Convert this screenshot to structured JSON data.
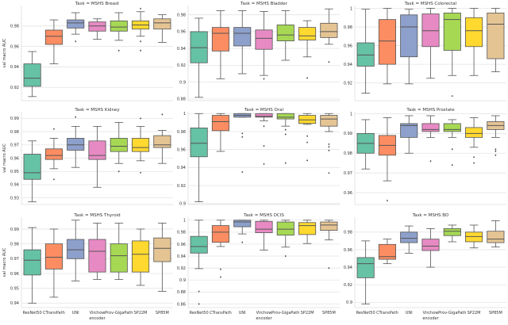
{
  "chart_data": {
    "type": "box",
    "layout": "3x3 facet grid",
    "grid": true,
    "categories": [
      "ResNet50",
      "CTransPath",
      "UNI",
      "Virchow",
      "Prov-GigaPath",
      "SP22M",
      "SP85M"
    ],
    "xlabel": "encoder",
    "ylabel": "val macro AUC",
    "colors": [
      "#66c2a5",
      "#fc8d62",
      "#8da0cb",
      "#e78ac3",
      "#a6d854",
      "#ffd92f",
      "#e5c494"
    ],
    "panels": [
      {
        "title": "Task = MSHS Breast",
        "ylim": [
          0.907,
          1.0
        ],
        "yticks": [
          0.92,
          0.94,
          0.96,
          0.98
        ],
        "boxes": [
          [
            0.911,
            0.921,
            0.929,
            0.943,
            0.955,
            []
          ],
          [
            0.943,
            0.962,
            0.97,
            0.976,
            0.986,
            []
          ],
          [
            0.972,
            0.978,
            0.983,
            0.986,
            0.993,
            [
              0.965
            ]
          ],
          [
            0.967,
            0.975,
            0.98,
            0.984,
            0.987,
            []
          ],
          [
            0.966,
            0.975,
            0.979,
            0.985,
            0.993,
            [
              0.956
            ]
          ],
          [
            0.97,
            0.977,
            0.981,
            0.985,
            0.994,
            [
              0.997,
              0.965,
              0.956
            ]
          ],
          [
            0.964,
            0.977,
            0.983,
            0.987,
            0.991,
            []
          ]
        ]
      },
      {
        "title": "Task = MSHS Bladder",
        "ylim": [
          0.878,
          0.991
        ],
        "yticks": [
          0.88,
          0.9,
          0.92,
          0.94,
          0.96,
          0.98
        ],
        "boxes": [
          [
            0.882,
            0.923,
            0.941,
            0.96,
            0.976,
            []
          ],
          [
            0.904,
            0.937,
            0.958,
            0.965,
            0.985,
            []
          ],
          [
            0.91,
            0.943,
            0.958,
            0.965,
            0.985,
            []
          ],
          [
            0.908,
            0.939,
            0.952,
            0.962,
            0.984,
            [
              0.904
            ]
          ],
          [
            0.926,
            0.949,
            0.956,
            0.968,
            0.985,
            []
          ],
          [
            0.93,
            0.95,
            0.955,
            0.965,
            0.973,
            [
              0.905
            ]
          ],
          [
            0.945,
            0.953,
            0.96,
            0.97,
            0.987,
            [
              0.924
            ]
          ]
        ]
      },
      {
        "title": "Task = MSHS Colorectal",
        "ylim": [
          0.901,
          1.003
        ],
        "yticks": [
          0.92,
          0.94,
          0.96,
          0.98,
          1.0
        ],
        "boxes": [
          [
            0.909,
            0.938,
            0.95,
            0.963,
            0.999,
            []
          ],
          [
            0.919,
            0.94,
            0.965,
            0.988,
            1.0,
            []
          ],
          [
            0.919,
            0.948,
            0.98,
            0.993,
            0.999,
            []
          ],
          [
            0.925,
            0.959,
            0.976,
            0.994,
            1.0,
            []
          ],
          [
            0.928,
            0.955,
            0.988,
            0.995,
            1.0,
            [
              0.906
            ]
          ],
          [
            0.928,
            0.959,
            0.976,
            0.99,
            1.0,
            []
          ],
          [
            0.932,
            0.946,
            0.983,
            0.995,
            1.0,
            []
          ]
        ]
      },
      {
        "title": "Task = MSHS Kidney",
        "ylim": [
          0.925,
          0.995
        ],
        "yticks": [
          0.93,
          0.94,
          0.95,
          0.96,
          0.97,
          0.98,
          0.99
        ],
        "boxes": [
          [
            0.927,
            0.944,
            0.949,
            0.963,
            0.973,
            []
          ],
          [
            0.952,
            0.959,
            0.962,
            0.967,
            0.975,
            [
              0.982,
              0.944
            ]
          ],
          [
            0.953,
            0.966,
            0.97,
            0.975,
            0.984,
            [
              0.991
            ]
          ],
          [
            0.938,
            0.959,
            0.962,
            0.973,
            0.984,
            []
          ],
          [
            0.956,
            0.965,
            0.969,
            0.975,
            0.987,
            [
              0.95
            ]
          ],
          [
            0.958,
            0.965,
            0.968,
            0.975,
            0.984,
            [
              0.99,
              0.949
            ]
          ],
          [
            0.956,
            0.968,
            0.97,
            0.977,
            0.981,
            [
              0.993
            ]
          ]
        ]
      },
      {
        "title": "Task = MSHS Oral",
        "ylim": [
          0.899,
          1.002
        ],
        "yticks": [
          0.9,
          0.92,
          0.94,
          0.96,
          0.98,
          1.0
        ],
        "boxes": [
          [
            0.902,
            0.952,
            0.967,
            0.984,
            1.0,
            []
          ],
          [
            0.958,
            0.981,
            0.991,
            0.998,
            1.0,
            []
          ],
          [
            0.996,
            0.996,
            0.998,
            1.0,
            1.0,
            [
              0.978,
              0.974,
              0.935
            ]
          ],
          [
            0.992,
            0.996,
            0.997,
            1.0,
            1.0,
            [
              0.986,
              0.964,
              0.944
            ]
          ],
          [
            0.986,
            0.994,
            0.996,
            1.0,
            1.0,
            [
              0.982,
              0.977,
              0.945
            ]
          ],
          [
            0.988,
            0.989,
            0.993,
            0.998,
            1.0,
            [
              0.975,
              0.968,
              0.948
            ]
          ],
          [
            0.98,
            0.986,
            0.994,
            0.998,
            1.0,
            [
              0.966,
              0.963,
              0.959,
              0.934
            ]
          ]
        ]
      },
      {
        "title": "Task = MSHS Prostate",
        "ylim": [
          0.954,
          1.001
        ],
        "yticks": [
          0.96,
          0.97,
          0.98,
          0.99,
          1.0
        ],
        "boxes": [
          [
            0.972,
            0.98,
            0.985,
            0.99,
            0.997,
            []
          ],
          [
            0.966,
            0.979,
            0.984,
            0.989,
            0.998,
            [
              0.956
            ]
          ],
          [
            0.98,
            0.988,
            0.994,
            0.995,
            0.999,
            []
          ],
          [
            0.988,
            0.991,
            0.992,
            0.995,
            0.999,
            [
              0.976
            ]
          ],
          [
            0.988,
            0.991,
            0.992,
            0.995,
            0.997,
            [
              0.982,
              0.974
            ]
          ],
          [
            0.983,
            0.988,
            0.99,
            0.993,
            0.998,
            [
              0.978,
              0.975
            ]
          ],
          [
            0.988,
            0.992,
            0.994,
            0.996,
            0.999,
            [
              0.982,
              0.981,
              0.979
            ]
          ]
        ]
      },
      {
        "title": "Task = MSHS Thyroid",
        "ylim": [
          0.937,
          0.998
        ],
        "yticks": [
          0.94,
          0.95,
          0.96,
          0.97,
          0.98,
          0.99
        ],
        "boxes": [
          [
            0.94,
            0.959,
            0.969,
            0.976,
            0.991,
            []
          ],
          [
            0.944,
            0.963,
            0.971,
            0.98,
            0.99,
            []
          ],
          [
            0.955,
            0.97,
            0.976,
            0.983,
            0.996,
            []
          ],
          [
            0.956,
            0.961,
            0.975,
            0.983,
            0.994,
            []
          ],
          [
            0.956,
            0.961,
            0.972,
            0.98,
            0.994,
            []
          ],
          [
            0.952,
            0.961,
            0.973,
            0.982,
            0.99,
            []
          ],
          [
            0.948,
            0.968,
            0.977,
            0.984,
            0.994,
            []
          ]
        ]
      },
      {
        "title": "Task = MSHS DCIS",
        "ylim": [
          0.854,
          1.005
        ],
        "yticks": [
          0.86,
          0.88,
          0.9,
          0.92,
          0.94,
          0.96,
          0.98,
          1.0
        ],
        "boxes": [
          [
            0.919,
            0.945,
            0.956,
            0.973,
            1.0,
            [
              0.881,
              0.86
            ]
          ],
          [
            0.956,
            0.963,
            0.98,
            0.991,
            1.0,
            [
              0.918,
              0.905
            ]
          ],
          [
            0.977,
            0.989,
            0.997,
            1.0,
            1.0,
            [
              0.963
            ]
          ],
          [
            0.95,
            0.979,
            0.985,
            0.998,
            1.0,
            []
          ],
          [
            0.955,
            0.975,
            0.985,
            0.997,
            1.0,
            [
              0.94
            ]
          ],
          [
            0.961,
            0.976,
            0.991,
            0.996,
            1.0,
            []
          ],
          [
            0.967,
            0.983,
            0.992,
            0.997,
            1.0,
            [
              0.92
            ]
          ]
        ]
      },
      {
        "title": "Task = MSHS BD",
        "ylim": [
          0.894,
          0.997
        ],
        "yticks": [
          0.9,
          0.92,
          0.94,
          0.96,
          0.98
        ],
        "boxes": [
          [
            0.898,
            0.928,
            0.944,
            0.951,
            0.97,
            []
          ],
          [
            0.944,
            0.949,
            0.952,
            0.966,
            0.972,
            []
          ],
          [
            0.956,
            0.968,
            0.973,
            0.98,
            0.987,
            []
          ],
          [
            0.94,
            0.959,
            0.964,
            0.972,
            0.984,
            []
          ],
          [
            0.969,
            0.976,
            0.981,
            0.984,
            0.988,
            []
          ],
          [
            0.962,
            0.969,
            0.975,
            0.98,
            0.988,
            []
          ],
          [
            0.963,
            0.968,
            0.972,
            0.981,
            0.993,
            []
          ]
        ]
      }
    ]
  }
}
